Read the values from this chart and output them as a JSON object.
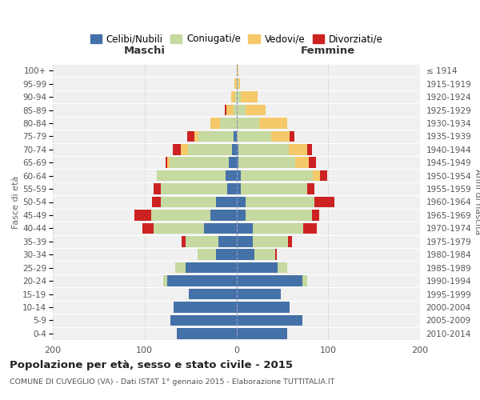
{
  "age_groups": [
    "0-4",
    "5-9",
    "10-14",
    "15-19",
    "20-24",
    "25-29",
    "30-34",
    "35-39",
    "40-44",
    "45-49",
    "50-54",
    "55-59",
    "60-64",
    "65-69",
    "70-74",
    "75-79",
    "80-84",
    "85-89",
    "90-94",
    "95-99",
    "100+"
  ],
  "birth_years": [
    "2010-2014",
    "2005-2009",
    "2000-2004",
    "1995-1999",
    "1990-1994",
    "1985-1989",
    "1980-1984",
    "1975-1979",
    "1970-1974",
    "1965-1969",
    "1960-1964",
    "1955-1959",
    "1950-1954",
    "1945-1949",
    "1940-1944",
    "1935-1939",
    "1930-1934",
    "1925-1929",
    "1920-1924",
    "1915-1919",
    "≤ 1914"
  ],
  "colors": {
    "celibi": "#4472a8",
    "coniugati": "#c5d9a0",
    "vedovi": "#f5c96a",
    "divorziati": "#cc2222"
  },
  "maschi": {
    "celibi": [
      65,
      72,
      68,
      52,
      75,
      55,
      22,
      20,
      35,
      28,
      22,
      10,
      12,
      8,
      5,
      3,
      0,
      0,
      0,
      0,
      0
    ],
    "coniugati": [
      0,
      0,
      0,
      0,
      5,
      12,
      20,
      35,
      55,
      65,
      60,
      72,
      75,
      65,
      48,
      38,
      18,
      3,
      1,
      0,
      0
    ],
    "vedovi": [
      0,
      0,
      0,
      0,
      0,
      0,
      0,
      0,
      0,
      0,
      0,
      0,
      0,
      2,
      8,
      5,
      10,
      8,
      5,
      2,
      0
    ],
    "divorziati": [
      0,
      0,
      0,
      0,
      0,
      0,
      0,
      5,
      12,
      18,
      10,
      8,
      0,
      2,
      8,
      8,
      0,
      2,
      0,
      0,
      0
    ]
  },
  "femmine": {
    "celibi": [
      55,
      72,
      58,
      48,
      72,
      45,
      20,
      18,
      18,
      10,
      10,
      5,
      5,
      2,
      2,
      0,
      0,
      0,
      0,
      0,
      0
    ],
    "coniugati": [
      0,
      0,
      0,
      0,
      5,
      10,
      22,
      38,
      55,
      72,
      75,
      72,
      78,
      62,
      55,
      38,
      25,
      10,
      5,
      2,
      0
    ],
    "vedovi": [
      0,
      0,
      0,
      0,
      0,
      0,
      0,
      0,
      0,
      0,
      0,
      0,
      8,
      15,
      20,
      20,
      30,
      22,
      18,
      2,
      2
    ],
    "divorziati": [
      0,
      0,
      0,
      0,
      0,
      0,
      2,
      5,
      15,
      8,
      22,
      8,
      8,
      8,
      5,
      5,
      0,
      0,
      0,
      0,
      0
    ]
  },
  "title": "Popolazione per età, sesso e stato civile - 2015",
  "subtitle": "COMUNE DI CUVEGLIO (VA) - Dati ISTAT 1° gennaio 2015 - Elaborazione TUTTITALIA.IT",
  "xlabel_left": "Maschi",
  "xlabel_right": "Femmine",
  "ylabel_left": "Fasce di età",
  "ylabel_right": "Anni di nascita",
  "xlim": 200,
  "legend_labels": [
    "Celibi/Nubili",
    "Coniugati/e",
    "Vedovi/e",
    "Divorziati/e"
  ],
  "bg_color": "#ffffff",
  "plot_bg_color": "#f0f0f0"
}
